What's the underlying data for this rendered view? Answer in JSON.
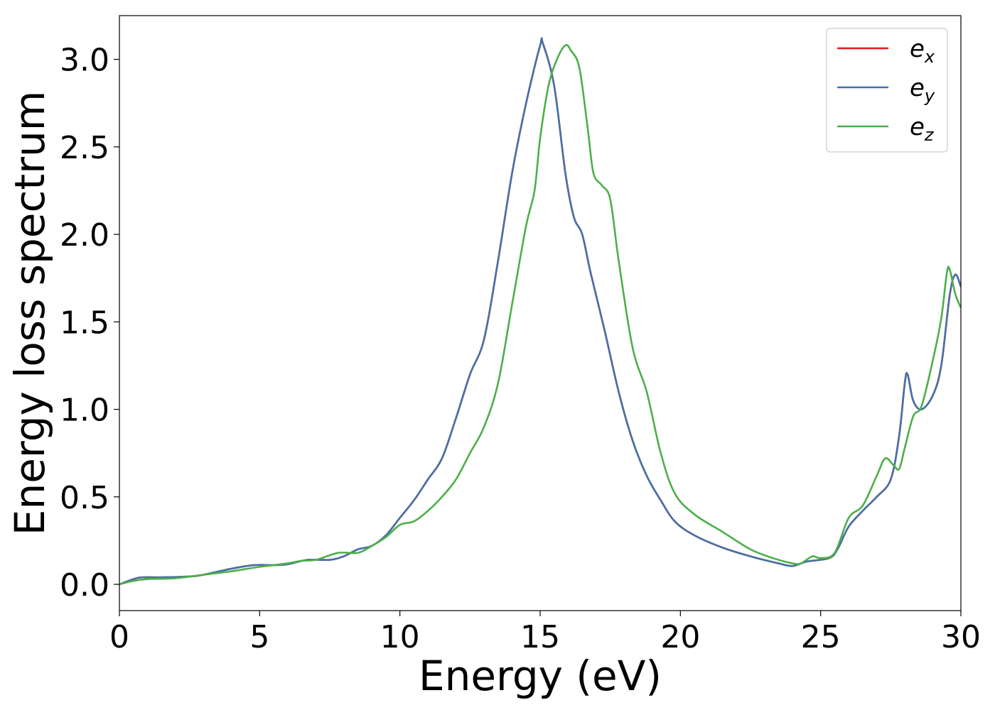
{
  "chart_data": {
    "type": "line",
    "xlabel": "Energy (eV)",
    "ylabel": "Energy loss spectrum",
    "xlim": [
      0,
      30
    ],
    "ylim": [
      -0.15,
      3.25
    ],
    "xticks": [
      "0",
      "5",
      "10",
      "15",
      "20",
      "25",
      "30"
    ],
    "yticks": [
      "0.0",
      "0.5",
      "1.0",
      "1.5",
      "2.0",
      "2.5",
      "3.0"
    ],
    "grid": false,
    "legend_position": "top-right",
    "series": [
      {
        "name": "e",
        "subscript": "x",
        "color": "#e41a1c",
        "points": [
          [
            0,
            0.0
          ],
          [
            0.5,
            0.03
          ],
          [
            0.8,
            0.04
          ],
          [
            1.5,
            0.04
          ],
          [
            2.5,
            0.045
          ],
          [
            3.0,
            0.055
          ],
          [
            4.0,
            0.09
          ],
          [
            4.8,
            0.11
          ],
          [
            5.5,
            0.11
          ],
          [
            6.0,
            0.115
          ],
          [
            6.7,
            0.14
          ],
          [
            7.5,
            0.14
          ],
          [
            8.0,
            0.16
          ],
          [
            8.5,
            0.2
          ],
          [
            9.0,
            0.22
          ],
          [
            9.5,
            0.28
          ],
          [
            10.0,
            0.38
          ],
          [
            10.5,
            0.48
          ],
          [
            11.0,
            0.6
          ],
          [
            11.5,
            0.72
          ],
          [
            12.0,
            0.95
          ],
          [
            12.5,
            1.2
          ],
          [
            13.0,
            1.4
          ],
          [
            13.5,
            1.85
          ],
          [
            14.0,
            2.35
          ],
          [
            14.5,
            2.75
          ],
          [
            15.0,
            3.08
          ],
          [
            15.1,
            3.09
          ],
          [
            15.5,
            2.85
          ],
          [
            15.9,
            2.35
          ],
          [
            16.2,
            2.1
          ],
          [
            16.5,
            2.0
          ],
          [
            16.8,
            1.78
          ],
          [
            17.3,
            1.45
          ],
          [
            17.8,
            1.1
          ],
          [
            18.3,
            0.82
          ],
          [
            18.8,
            0.62
          ],
          [
            19.3,
            0.48
          ],
          [
            19.8,
            0.36
          ],
          [
            20.5,
            0.28
          ],
          [
            21.5,
            0.21
          ],
          [
            22.5,
            0.16
          ],
          [
            23.5,
            0.12
          ],
          [
            24.0,
            0.105
          ],
          [
            24.5,
            0.13
          ],
          [
            25.3,
            0.15
          ],
          [
            25.6,
            0.2
          ],
          [
            26.0,
            0.33
          ],
          [
            26.5,
            0.42
          ],
          [
            27.0,
            0.5
          ],
          [
            27.5,
            0.6
          ],
          [
            27.8,
            0.85
          ],
          [
            28.0,
            1.15
          ],
          [
            28.1,
            1.2
          ],
          [
            28.3,
            1.05
          ],
          [
            28.6,
            1.0
          ],
          [
            29.0,
            1.08
          ],
          [
            29.3,
            1.25
          ],
          [
            29.6,
            1.65
          ],
          [
            29.8,
            1.77
          ],
          [
            30.0,
            1.7
          ]
        ]
      },
      {
        "name": "e",
        "subscript": "y",
        "color": "#4472a8",
        "points": [
          [
            0,
            0.0
          ],
          [
            0.5,
            0.03
          ],
          [
            0.8,
            0.04
          ],
          [
            1.5,
            0.04
          ],
          [
            2.5,
            0.045
          ],
          [
            3.0,
            0.055
          ],
          [
            4.0,
            0.09
          ],
          [
            4.8,
            0.11
          ],
          [
            5.5,
            0.11
          ],
          [
            6.0,
            0.115
          ],
          [
            6.7,
            0.14
          ],
          [
            7.5,
            0.14
          ],
          [
            8.0,
            0.16
          ],
          [
            8.5,
            0.2
          ],
          [
            9.0,
            0.22
          ],
          [
            9.5,
            0.28
          ],
          [
            10.0,
            0.38
          ],
          [
            10.5,
            0.48
          ],
          [
            11.0,
            0.6
          ],
          [
            11.5,
            0.72
          ],
          [
            12.0,
            0.95
          ],
          [
            12.5,
            1.2
          ],
          [
            13.0,
            1.4
          ],
          [
            13.5,
            1.85
          ],
          [
            14.0,
            2.35
          ],
          [
            14.5,
            2.75
          ],
          [
            15.0,
            3.08
          ],
          [
            15.1,
            3.09
          ],
          [
            15.5,
            2.85
          ],
          [
            15.9,
            2.35
          ],
          [
            16.2,
            2.1
          ],
          [
            16.5,
            2.0
          ],
          [
            16.8,
            1.78
          ],
          [
            17.3,
            1.45
          ],
          [
            17.8,
            1.1
          ],
          [
            18.3,
            0.82
          ],
          [
            18.8,
            0.62
          ],
          [
            19.3,
            0.48
          ],
          [
            19.8,
            0.36
          ],
          [
            20.5,
            0.28
          ],
          [
            21.5,
            0.21
          ],
          [
            22.5,
            0.16
          ],
          [
            23.5,
            0.12
          ],
          [
            24.0,
            0.105
          ],
          [
            24.5,
            0.13
          ],
          [
            25.3,
            0.15
          ],
          [
            25.6,
            0.2
          ],
          [
            26.0,
            0.33
          ],
          [
            26.5,
            0.42
          ],
          [
            27.0,
            0.5
          ],
          [
            27.5,
            0.6
          ],
          [
            27.8,
            0.85
          ],
          [
            28.0,
            1.15
          ],
          [
            28.1,
            1.2
          ],
          [
            28.3,
            1.05
          ],
          [
            28.6,
            1.0
          ],
          [
            29.0,
            1.08
          ],
          [
            29.3,
            1.25
          ],
          [
            29.6,
            1.65
          ],
          [
            29.8,
            1.77
          ],
          [
            30.0,
            1.7
          ]
        ]
      },
      {
        "name": "e",
        "subscript": "z",
        "color": "#4daf4a",
        "points": [
          [
            0,
            0.0
          ],
          [
            0.5,
            0.02
          ],
          [
            1.0,
            0.03
          ],
          [
            2.0,
            0.035
          ],
          [
            3.0,
            0.055
          ],
          [
            4.0,
            0.075
          ],
          [
            5.0,
            0.1
          ],
          [
            6.0,
            0.12
          ],
          [
            6.5,
            0.135
          ],
          [
            7.0,
            0.14
          ],
          [
            7.8,
            0.18
          ],
          [
            8.5,
            0.18
          ],
          [
            9.0,
            0.22
          ],
          [
            9.5,
            0.27
          ],
          [
            10.0,
            0.34
          ],
          [
            10.5,
            0.36
          ],
          [
            11.0,
            0.42
          ],
          [
            11.5,
            0.5
          ],
          [
            12.0,
            0.6
          ],
          [
            12.5,
            0.75
          ],
          [
            13.0,
            0.9
          ],
          [
            13.5,
            1.15
          ],
          [
            14.0,
            1.6
          ],
          [
            14.5,
            2.05
          ],
          [
            14.8,
            2.25
          ],
          [
            15.0,
            2.55
          ],
          [
            15.3,
            2.85
          ],
          [
            15.6,
            3.0
          ],
          [
            15.9,
            3.08
          ],
          [
            16.1,
            3.05
          ],
          [
            16.4,
            2.95
          ],
          [
            16.7,
            2.6
          ],
          [
            16.9,
            2.35
          ],
          [
            17.2,
            2.28
          ],
          [
            17.5,
            2.2
          ],
          [
            17.8,
            1.85
          ],
          [
            18.3,
            1.35
          ],
          [
            18.8,
            1.1
          ],
          [
            19.3,
            0.75
          ],
          [
            19.8,
            0.52
          ],
          [
            20.5,
            0.4
          ],
          [
            21.5,
            0.3
          ],
          [
            22.5,
            0.2
          ],
          [
            23.3,
            0.15
          ],
          [
            24.0,
            0.12
          ],
          [
            24.3,
            0.12
          ],
          [
            24.7,
            0.16
          ],
          [
            25.0,
            0.15
          ],
          [
            25.5,
            0.18
          ],
          [
            26.0,
            0.38
          ],
          [
            26.5,
            0.45
          ],
          [
            27.0,
            0.62
          ],
          [
            27.3,
            0.72
          ],
          [
            27.6,
            0.68
          ],
          [
            27.8,
            0.66
          ],
          [
            28.0,
            0.78
          ],
          [
            28.3,
            0.96
          ],
          [
            28.6,
            1.02
          ],
          [
            29.0,
            1.28
          ],
          [
            29.3,
            1.52
          ],
          [
            29.5,
            1.78
          ],
          [
            29.6,
            1.8
          ],
          [
            29.8,
            1.66
          ],
          [
            30.0,
            1.58
          ]
        ]
      }
    ]
  }
}
